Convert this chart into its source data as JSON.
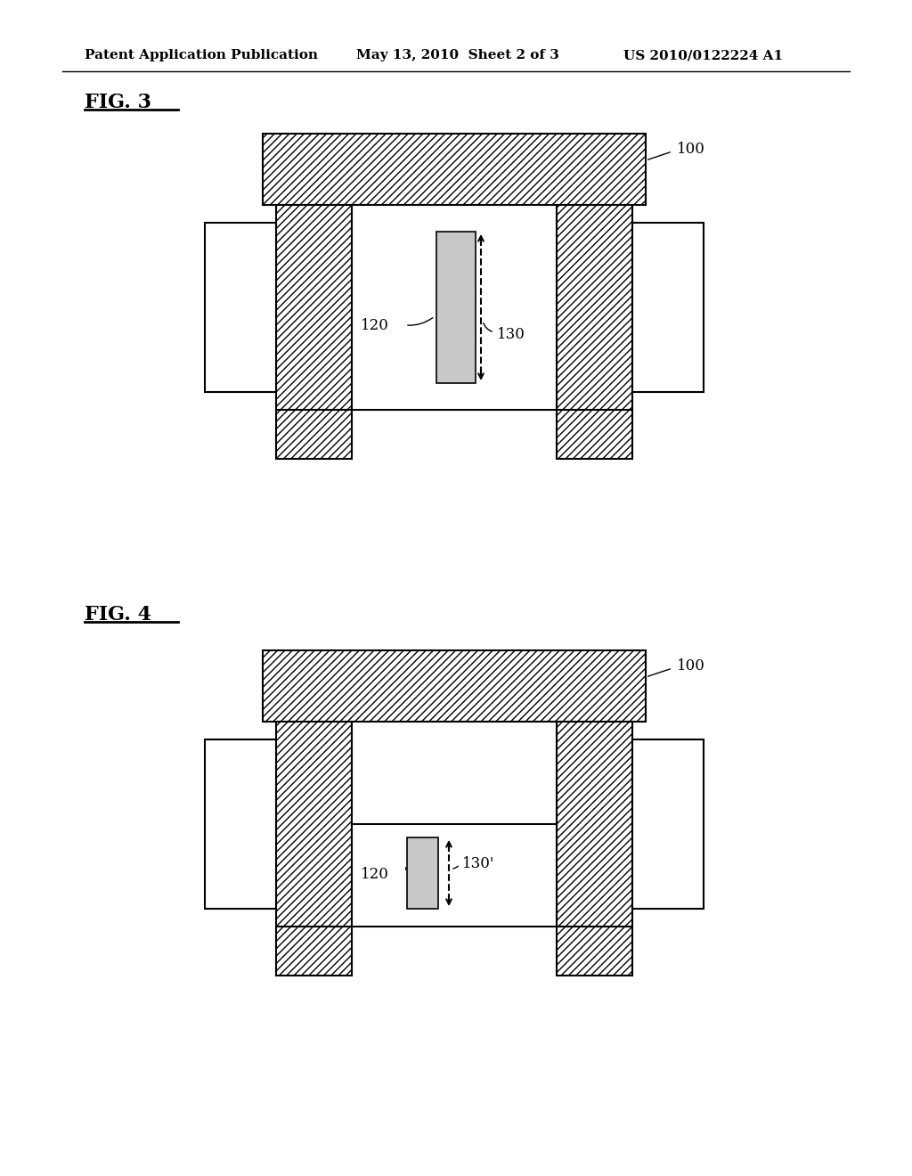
{
  "bg_color": "#ffffff",
  "header_text": "Patent Application Publication",
  "header_date": "May 13, 2010  Sheet 2 of 3",
  "header_patent": "US 2010/0122224 A1",
  "fig3_label": "FIG. 3",
  "fig4_label": "FIG. 4",
  "hatch_pattern": "////",
  "hatch_color": "#000000",
  "hatch_fill": "#ffffff",
  "inner_fill": "#ffffff",
  "rect_fill": "#cccccc",
  "label_100": "100",
  "label_120_fig3": "120",
  "label_130_fig3": "130",
  "label_120_fig4": "120",
  "label_130_fig4": "130'"
}
